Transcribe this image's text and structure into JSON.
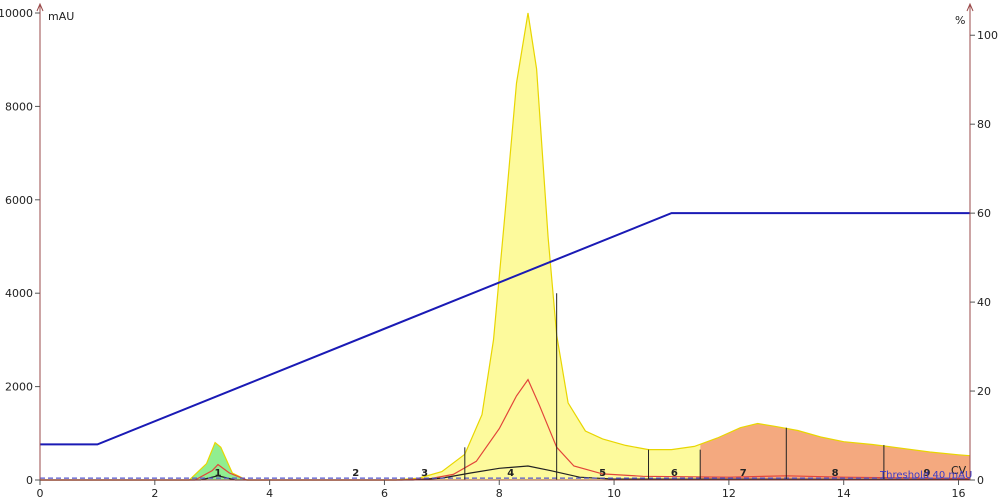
{
  "chart_data": {
    "type": "area",
    "y_left_unit": "mAU",
    "y_right_unit": "%",
    "x_unit": "CV",
    "xlim": [
      0,
      16.2
    ],
    "ylim_left": [
      0,
      10000
    ],
    "ylim_right": [
      0,
      105
    ],
    "x_ticks": [
      0,
      2,
      4,
      6,
      8,
      10,
      12,
      14,
      16
    ],
    "y_left_ticks": [
      0,
      2000,
      4000,
      6000,
      8000,
      10000
    ],
    "y_right_ticks": [
      0,
      20,
      40,
      60,
      80,
      100
    ],
    "threshold": {
      "label": "Threshold 40 mAU",
      "value": 40
    },
    "colors": {
      "gradient": "#1a1ab5",
      "uv1": "#e8d600",
      "uv1_fill": "#fdfa9c",
      "uv2": "#e2453a",
      "uv3": "#222222",
      "fraction_green": "#90ee90",
      "fraction_salmon": "#f4a97f",
      "threshold": "#5555cc"
    },
    "series": [
      {
        "axis": "right",
        "type": "line",
        "points": [
          [
            0,
            8
          ],
          [
            1,
            8
          ],
          [
            11,
            60
          ],
          [
            16.2,
            60
          ]
        ]
      },
      {
        "axis": "left",
        "type": "area",
        "points": [
          [
            0,
            0
          ],
          [
            2.6,
            0
          ],
          [
            2.9,
            350
          ],
          [
            3.05,
            800
          ],
          [
            3.15,
            700
          ],
          [
            3.35,
            150
          ],
          [
            3.6,
            0
          ],
          [
            6.2,
            0
          ],
          [
            6.6,
            40
          ],
          [
            7.0,
            180
          ],
          [
            7.4,
            550
          ],
          [
            7.7,
            1400
          ],
          [
            7.9,
            3000
          ],
          [
            8.1,
            5700
          ],
          [
            8.3,
            8500
          ],
          [
            8.5,
            10000
          ],
          [
            8.65,
            8800
          ],
          [
            8.85,
            5200
          ],
          [
            9.0,
            3100
          ],
          [
            9.2,
            1650
          ],
          [
            9.5,
            1050
          ],
          [
            9.8,
            880
          ],
          [
            10.2,
            740
          ],
          [
            10.6,
            650
          ],
          [
            11.0,
            650
          ],
          [
            11.4,
            720
          ],
          [
            11.8,
            900
          ],
          [
            12.2,
            1120
          ],
          [
            12.5,
            1210
          ],
          [
            12.8,
            1150
          ],
          [
            13.2,
            1060
          ],
          [
            13.6,
            920
          ],
          [
            14.0,
            820
          ],
          [
            14.5,
            760
          ],
          [
            15.0,
            680
          ],
          [
            15.5,
            600
          ],
          [
            16.0,
            540
          ],
          [
            16.2,
            520
          ]
        ]
      },
      {
        "axis": "left",
        "type": "line",
        "points": [
          [
            0,
            0
          ],
          [
            2.7,
            0
          ],
          [
            3.0,
            200
          ],
          [
            3.1,
            330
          ],
          [
            3.3,
            150
          ],
          [
            3.6,
            0
          ],
          [
            6.3,
            0
          ],
          [
            6.8,
            30
          ],
          [
            7.2,
            120
          ],
          [
            7.6,
            400
          ],
          [
            8.0,
            1100
          ],
          [
            8.3,
            1800
          ],
          [
            8.5,
            2150
          ],
          [
            8.7,
            1600
          ],
          [
            9.0,
            700
          ],
          [
            9.3,
            300
          ],
          [
            9.8,
            130
          ],
          [
            10.5,
            80
          ],
          [
            12.0,
            60
          ],
          [
            13.0,
            90
          ],
          [
            14.0,
            60
          ],
          [
            16.2,
            30
          ]
        ]
      },
      {
        "axis": "left",
        "type": "line",
        "points": [
          [
            0,
            0
          ],
          [
            2.8,
            0
          ],
          [
            3.1,
            90
          ],
          [
            3.4,
            0
          ],
          [
            6.5,
            0
          ],
          [
            7.0,
            40
          ],
          [
            7.5,
            150
          ],
          [
            8.0,
            250
          ],
          [
            8.5,
            300
          ],
          [
            8.9,
            200
          ],
          [
            9.4,
            60
          ],
          [
            10.0,
            20
          ],
          [
            16.2,
            10
          ]
        ]
      }
    ],
    "fractions": [
      {
        "label": "1",
        "start": 2.5,
        "end": 3.7,
        "color": "green"
      },
      {
        "label": "2",
        "start": 5.0,
        "end": 6.0
      },
      {
        "label": "3",
        "start": 6.0,
        "end": 7.4
      },
      {
        "label": "4",
        "start": 7.4,
        "end": 9.0
      },
      {
        "label": "5",
        "start": 9.0,
        "end": 10.6
      },
      {
        "label": "6",
        "start": 10.6,
        "end": 11.5
      },
      {
        "label": "7",
        "start": 11.5,
        "end": 13.0,
        "color": "salmon"
      },
      {
        "label": "8",
        "start": 13.0,
        "end": 14.7,
        "color": "salmon"
      },
      {
        "label": "9",
        "start": 14.7,
        "end": 16.2,
        "color": "salmon"
      }
    ],
    "fraction_markers": [
      {
        "x": 7.4,
        "y": 700
      },
      {
        "x": 9.0,
        "y": 4000
      },
      {
        "x": 10.6,
        "y": 650
      },
      {
        "x": 11.5,
        "y": 650
      },
      {
        "x": 13.0,
        "y": 1120
      },
      {
        "x": 14.7,
        "y": 750
      },
      {
        "x": 16.2,
        "y": 520
      }
    ]
  }
}
